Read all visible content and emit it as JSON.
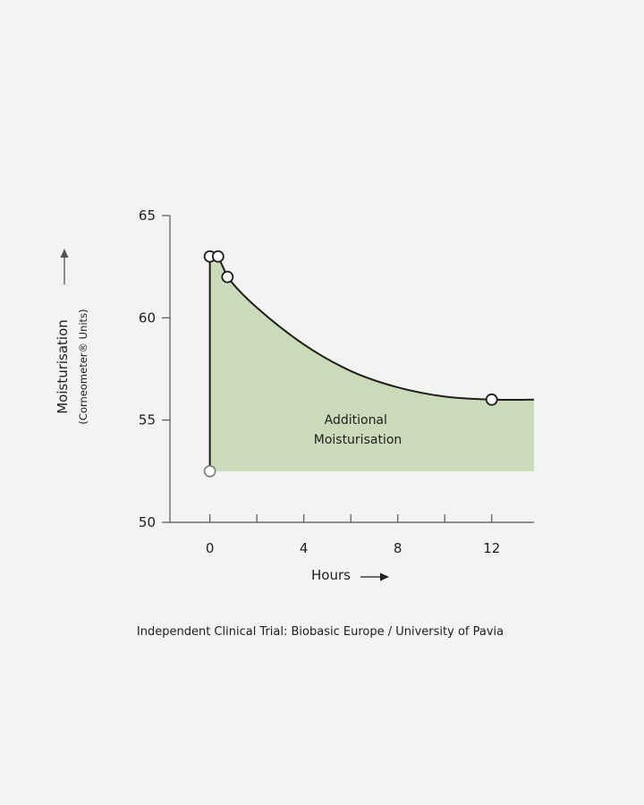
{
  "chart_data": {
    "type": "line",
    "xlabel": "Hours",
    "ylabel": "Moisturisation",
    "ylabel_sub": "(Corneometer® Units)",
    "xlim": [
      -1.7,
      13.8
    ],
    "ylim": [
      50,
      65
    ],
    "x_ticks": [
      0,
      2,
      4,
      6,
      8,
      10,
      12
    ],
    "x_tick_labels": [
      "0",
      "",
      "4",
      "",
      "8",
      "",
      "12"
    ],
    "y_ticks": [
      50,
      55,
      60,
      65
    ],
    "y_tick_labels": [
      "50",
      "55",
      "60",
      "65"
    ],
    "baseline": 52.5,
    "series": [
      {
        "curve": [
          [
            0,
            52.5
          ],
          [
            0,
            63
          ],
          [
            0.35,
            63
          ],
          [
            0.75,
            62
          ],
          [
            2,
            60.5
          ],
          [
            4,
            58.7
          ],
          [
            6,
            57.4
          ],
          [
            8,
            56.6
          ],
          [
            10,
            56.15
          ],
          [
            12,
            56
          ],
          [
            13.8,
            56
          ]
        ],
        "markers": [
          [
            0,
            63
          ],
          [
            0.35,
            63
          ],
          [
            0.75,
            62
          ],
          [
            12,
            56
          ]
        ],
        "baseline_marker": [
          0,
          52.5
        ]
      }
    ],
    "annotation": [
      "Additional",
      "Moisturisation"
    ],
    "fill_color": "#cbdab8",
    "line_color": "#1d1d1b",
    "axis_color": "#555555",
    "baseline_marker_color": "#777777",
    "legend": "none",
    "grid": false
  },
  "footnote": "Independent Clinical Trial: Biobasic Europe / University of Pavia"
}
